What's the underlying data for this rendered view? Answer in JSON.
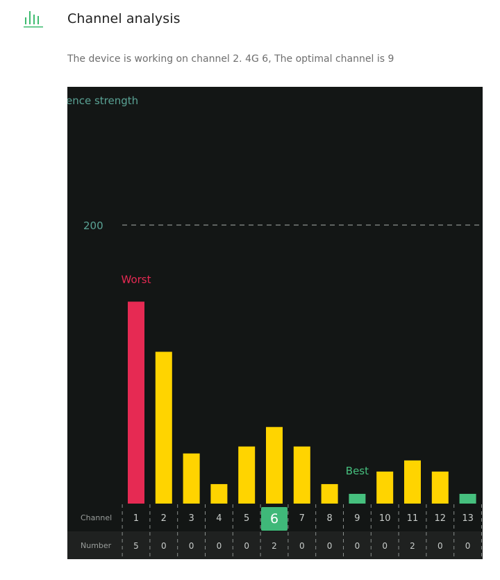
{
  "header": {
    "title": "Channel analysis",
    "icon": "signal-bars-icon"
  },
  "status": {
    "text": "The device is working on channel 2. 4G 6,  The optimal channel is 9"
  },
  "colors": {
    "accent": "#3dbb6f",
    "worst": "#e62a53",
    "normal": "#ffd400",
    "best": "#46c07e",
    "axis_text": "#5aa395",
    "panel_bg": "#131615",
    "row_bg": "#1f2120"
  },
  "chart_data": {
    "type": "bar",
    "ylabel": "ence strength",
    "reference_line": {
      "value": 200,
      "label": "200"
    },
    "current_channel": "6",
    "worst_label": "Worst",
    "best_label": "Best",
    "row_labels": {
      "channel": "Channel",
      "number": "Number"
    },
    "categories": [
      "1",
      "2",
      "3",
      "4",
      "5",
      "6",
      "7",
      "8",
      "9",
      "10",
      "11",
      "12",
      "13"
    ],
    "values": [
      145,
      109,
      36,
      14,
      41,
      55,
      41,
      14,
      7,
      23,
      31,
      23,
      7
    ],
    "status": [
      "worst",
      "normal",
      "normal",
      "normal",
      "normal",
      "normal",
      "normal",
      "normal",
      "best",
      "normal",
      "normal",
      "normal",
      "best"
    ],
    "counts": [
      "5",
      "0",
      "0",
      "0",
      "0",
      "2",
      "0",
      "0",
      "0",
      "0",
      "2",
      "0",
      "0"
    ]
  }
}
